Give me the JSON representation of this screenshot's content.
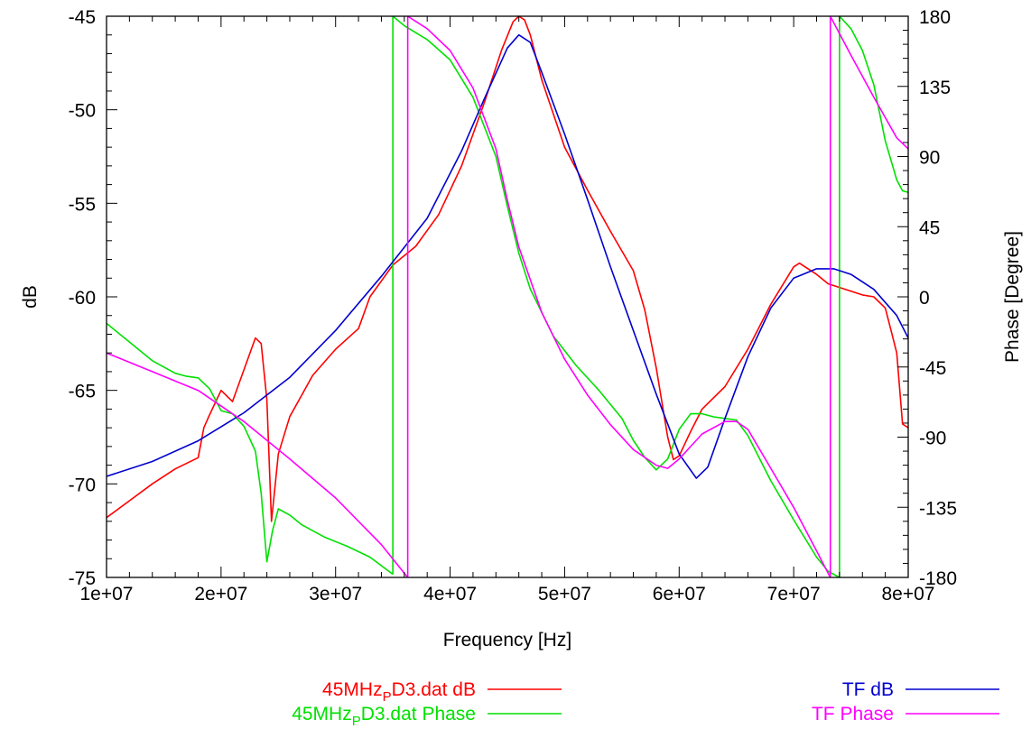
{
  "chart_data": {
    "type": "line",
    "title": "",
    "xlabel": "Frequency [Hz]",
    "ylabel": "dB",
    "y2label": "Phase [Degree]",
    "xlim": [
      10000000,
      80000000
    ],
    "ylim": [
      -75,
      -45
    ],
    "y2lim": [
      -180,
      180
    ],
    "x_ticks": [
      {
        "value": 10000000,
        "label": "1e+07"
      },
      {
        "value": 20000000,
        "label": "2e+07"
      },
      {
        "value": 30000000,
        "label": "3e+07"
      },
      {
        "value": 40000000,
        "label": "4e+07"
      },
      {
        "value": 50000000,
        "label": "5e+07"
      },
      {
        "value": 60000000,
        "label": "6e+07"
      },
      {
        "value": 70000000,
        "label": "7e+07"
      },
      {
        "value": 80000000,
        "label": "8e+07"
      }
    ],
    "y_ticks": [
      {
        "value": -45,
        "label": "-45"
      },
      {
        "value": -50,
        "label": "-50"
      },
      {
        "value": -55,
        "label": "-55"
      },
      {
        "value": -60,
        "label": "-60"
      },
      {
        "value": -65,
        "label": "-65"
      },
      {
        "value": -70,
        "label": "-70"
      },
      {
        "value": -75,
        "label": "-75"
      }
    ],
    "y2_ticks": [
      {
        "value": 180,
        "label": "180"
      },
      {
        "value": 135,
        "label": "135"
      },
      {
        "value": 90,
        "label": "90"
      },
      {
        "value": 45,
        "label": "45"
      },
      {
        "value": 0,
        "label": "0"
      },
      {
        "value": -45,
        "label": "-45"
      },
      {
        "value": -90,
        "label": "-90"
      },
      {
        "value": -135,
        "label": "-135"
      },
      {
        "value": -180,
        "label": "-180"
      }
    ],
    "grid": false,
    "legend": {
      "placement": "bottom"
    },
    "series": [
      {
        "name_main": "45MHz",
        "name_sub": "P",
        "name_rest": "D3.dat dB",
        "axis": "y",
        "color": "#ff0000",
        "points": [
          [
            10000000,
            -71.8
          ],
          [
            12000000,
            -70.9
          ],
          [
            14000000,
            -70.0
          ],
          [
            16000000,
            -69.2
          ],
          [
            18000000,
            -68.6
          ],
          [
            18500000,
            -67.0
          ],
          [
            19000000,
            -66.3
          ],
          [
            20000000,
            -65.0
          ],
          [
            21000000,
            -65.6
          ],
          [
            22000000,
            -63.9
          ],
          [
            23000000,
            -62.2
          ],
          [
            23500000,
            -62.5
          ],
          [
            24000000,
            -65.5
          ],
          [
            24400000,
            -72.0
          ],
          [
            25000000,
            -68.4
          ],
          [
            26000000,
            -66.4
          ],
          [
            27000000,
            -65.3
          ],
          [
            28000000,
            -64.2
          ],
          [
            30000000,
            -62.8
          ],
          [
            32000000,
            -61.7
          ],
          [
            33000000,
            -60.0
          ],
          [
            35000000,
            -58.3
          ],
          [
            37000000,
            -57.3
          ],
          [
            39000000,
            -55.6
          ],
          [
            41000000,
            -53.0
          ],
          [
            43000000,
            -49.6
          ],
          [
            44500000,
            -46.8
          ],
          [
            45500000,
            -45.3
          ],
          [
            46000000,
            -45.0
          ],
          [
            46500000,
            -45.2
          ],
          [
            47000000,
            -46.0
          ],
          [
            48000000,
            -48.4
          ],
          [
            50000000,
            -52.0
          ],
          [
            52000000,
            -54.3
          ],
          [
            54000000,
            -56.5
          ],
          [
            56000000,
            -58.6
          ],
          [
            57000000,
            -60.7
          ],
          [
            58000000,
            -63.8
          ],
          [
            59000000,
            -67.5
          ],
          [
            59500000,
            -68.7
          ],
          [
            60000000,
            -68.5
          ],
          [
            61000000,
            -67.2
          ],
          [
            62000000,
            -66.0
          ],
          [
            64000000,
            -64.8
          ],
          [
            66000000,
            -62.8
          ],
          [
            68000000,
            -60.4
          ],
          [
            70000000,
            -58.4
          ],
          [
            70500000,
            -58.2
          ],
          [
            72000000,
            -58.8
          ],
          [
            73000000,
            -59.3
          ],
          [
            74000000,
            -59.5
          ],
          [
            76000000,
            -59.9
          ],
          [
            77000000,
            -60.0
          ],
          [
            78000000,
            -60.6
          ],
          [
            78500000,
            -61.8
          ],
          [
            79000000,
            -63.0
          ],
          [
            79500000,
            -66.8
          ],
          [
            80000000,
            -67.0
          ]
        ]
      },
      {
        "name_main": "45MHz",
        "name_sub": "P",
        "name_rest": "D3.dat Phase",
        "axis": "y2",
        "color": "#00e000",
        "points": [
          [
            10000000,
            -17
          ],
          [
            12000000,
            -29
          ],
          [
            14000000,
            -41
          ],
          [
            16000000,
            -49
          ],
          [
            17000000,
            -51
          ],
          [
            18000000,
            -52
          ],
          [
            19000000,
            -59
          ],
          [
            20000000,
            -73
          ],
          [
            21000000,
            -75
          ],
          [
            22000000,
            -83
          ],
          [
            23000000,
            -99
          ],
          [
            23500000,
            -126
          ],
          [
            24000000,
            -170
          ],
          [
            24500000,
            -150
          ],
          [
            25000000,
            -136
          ],
          [
            26000000,
            -140
          ],
          [
            27000000,
            -146
          ],
          [
            29000000,
            -154
          ],
          [
            31000000,
            -160
          ],
          [
            33000000,
            -167
          ],
          [
            35000000,
            -178
          ],
          [
            35000100,
            180
          ],
          [
            36000000,
            174
          ],
          [
            38000000,
            165
          ],
          [
            40000000,
            152
          ],
          [
            42000000,
            128
          ],
          [
            44000000,
            90
          ],
          [
            45000000,
            58
          ],
          [
            46000000,
            28
          ],
          [
            47000000,
            5
          ],
          [
            49000000,
            -25
          ],
          [
            51000000,
            -44
          ],
          [
            53000000,
            -60
          ],
          [
            55000000,
            -78
          ],
          [
            56000000,
            -92
          ],
          [
            57000000,
            -103
          ],
          [
            58000000,
            -111
          ],
          [
            59000000,
            -104
          ],
          [
            60000000,
            -85
          ],
          [
            61000000,
            -75
          ],
          [
            62000000,
            -75
          ],
          [
            63000000,
            -77
          ],
          [
            64000000,
            -78
          ],
          [
            65000000,
            -79
          ],
          [
            66000000,
            -89
          ],
          [
            68000000,
            -118
          ],
          [
            70000000,
            -143
          ],
          [
            72000000,
            -167
          ],
          [
            73000000,
            -176
          ],
          [
            74000000,
            -180
          ],
          [
            74000100,
            180
          ],
          [
            75000000,
            172
          ],
          [
            76000000,
            158
          ],
          [
            77000000,
            136
          ],
          [
            78000000,
            100
          ],
          [
            79000000,
            75
          ],
          [
            79500000,
            68
          ],
          [
            80000000,
            67
          ]
        ]
      },
      {
        "name": "TF dB",
        "axis": "y",
        "color": "#0000d0",
        "points": [
          [
            10000000,
            -69.6
          ],
          [
            14000000,
            -68.8
          ],
          [
            18000000,
            -67.7
          ],
          [
            22000000,
            -66.2
          ],
          [
            26000000,
            -64.3
          ],
          [
            30000000,
            -61.8
          ],
          [
            34000000,
            -58.9
          ],
          [
            38000000,
            -55.8
          ],
          [
            41000000,
            -52.2
          ],
          [
            43000000,
            -49.4
          ],
          [
            45000000,
            -46.7
          ],
          [
            46000000,
            -46.0
          ],
          [
            47000000,
            -46.4
          ],
          [
            48000000,
            -48.0
          ],
          [
            50000000,
            -51.3
          ],
          [
            52000000,
            -54.8
          ],
          [
            54000000,
            -58.4
          ],
          [
            56000000,
            -61.8
          ],
          [
            58000000,
            -65.2
          ],
          [
            60000000,
            -68.4
          ],
          [
            61500000,
            -69.7
          ],
          [
            62500000,
            -69.1
          ],
          [
            64000000,
            -66.5
          ],
          [
            66000000,
            -63.2
          ],
          [
            68000000,
            -60.6
          ],
          [
            70000000,
            -59.0
          ],
          [
            72000000,
            -58.5
          ],
          [
            73500000,
            -58.5
          ],
          [
            75000000,
            -58.8
          ],
          [
            77000000,
            -59.6
          ],
          [
            79000000,
            -61.0
          ],
          [
            80000000,
            -62.2
          ]
        ]
      },
      {
        "name": "TF Phase",
        "axis": "y2",
        "color": "#ff00ff",
        "points": [
          [
            10000000,
            -36
          ],
          [
            14000000,
            -48
          ],
          [
            18000000,
            -60
          ],
          [
            22000000,
            -80
          ],
          [
            26000000,
            -104
          ],
          [
            30000000,
            -129
          ],
          [
            34000000,
            -159
          ],
          [
            36300000,
            -180
          ],
          [
            36300100,
            180
          ],
          [
            38000000,
            172
          ],
          [
            40000000,
            158
          ],
          [
            42000000,
            134
          ],
          [
            44000000,
            95
          ],
          [
            45000000,
            62
          ],
          [
            46000000,
            32
          ],
          [
            48000000,
            -10
          ],
          [
            50000000,
            -40
          ],
          [
            52000000,
            -63
          ],
          [
            54000000,
            -82
          ],
          [
            56000000,
            -98
          ],
          [
            58000000,
            -108
          ],
          [
            59000000,
            -110
          ],
          [
            60000000,
            -104
          ],
          [
            62000000,
            -88
          ],
          [
            64000000,
            -80
          ],
          [
            65000000,
            -80
          ],
          [
            66000000,
            -85
          ],
          [
            68000000,
            -110
          ],
          [
            70000000,
            -135
          ],
          [
            72000000,
            -163
          ],
          [
            73200000,
            -180
          ],
          [
            73200100,
            180
          ],
          [
            75000000,
            155
          ],
          [
            77000000,
            128
          ],
          [
            79000000,
            102
          ],
          [
            80000000,
            95
          ]
        ]
      }
    ]
  }
}
